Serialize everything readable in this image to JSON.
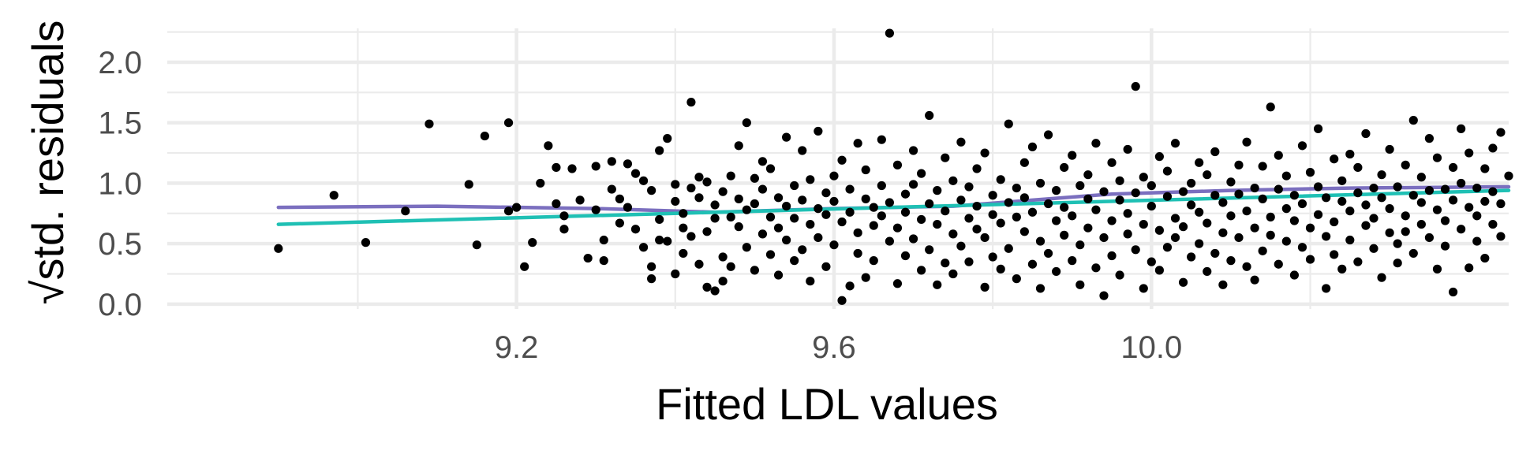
{
  "chart_data": {
    "type": "scatter",
    "title": "",
    "xlabel": "Fitted LDL values",
    "ylabel": "√std. residuals",
    "xlim": [
      8.76,
      10.45
    ],
    "ylim": [
      -0.04,
      2.28
    ],
    "x_ticks": [
      9.2,
      9.6,
      10.0
    ],
    "x_tick_labels": [
      "9.2",
      "9.6",
      "10.0"
    ],
    "y_ticks": [
      0.0,
      0.5,
      1.0,
      1.5,
      2.0
    ],
    "y_tick_labels": [
      "0.0",
      "0.5",
      "1.0",
      "1.5",
      "2.0"
    ],
    "grid": true,
    "legend": "none",
    "colors": {
      "background": "#ffffff",
      "grid": "#ebebeb",
      "points": "#000000",
      "smooth_line": "#7b6fbf",
      "linear_line": "#1fc0b4"
    },
    "points": [
      [
        8.9,
        0.46
      ],
      [
        8.97,
        0.9
      ],
      [
        9.01,
        0.51
      ],
      [
        9.06,
        0.77
      ],
      [
        9.09,
        1.49
      ],
      [
        9.14,
        0.99
      ],
      [
        9.15,
        0.49
      ],
      [
        9.16,
        1.39
      ],
      [
        9.19,
        1.5
      ],
      [
        9.19,
        0.77
      ],
      [
        9.2,
        0.8
      ],
      [
        9.21,
        0.31
      ],
      [
        9.22,
        0.51
      ],
      [
        9.23,
        1.0
      ],
      [
        9.24,
        1.31
      ],
      [
        9.25,
        1.13
      ],
      [
        9.25,
        0.83
      ],
      [
        9.26,
        0.62
      ],
      [
        9.26,
        0.73
      ],
      [
        9.27,
        1.12
      ],
      [
        9.28,
        0.86
      ],
      [
        9.29,
        0.38
      ],
      [
        9.3,
        1.14
      ],
      [
        9.3,
        0.78
      ],
      [
        9.31,
        0.36
      ],
      [
        9.31,
        0.53
      ],
      [
        9.32,
        1.18
      ],
      [
        9.32,
        0.95
      ],
      [
        9.33,
        0.67
      ],
      [
        9.33,
        0.87
      ],
      [
        9.34,
        1.16
      ],
      [
        9.34,
        0.8
      ],
      [
        9.35,
        1.08
      ],
      [
        9.35,
        0.62
      ],
      [
        9.36,
        1.02
      ],
      [
        9.36,
        0.47
      ],
      [
        9.37,
        0.94
      ],
      [
        9.37,
        0.21
      ],
      [
        9.37,
        0.31
      ],
      [
        9.38,
        0.53
      ],
      [
        9.38,
        1.27
      ],
      [
        9.38,
        0.7
      ],
      [
        9.39,
        1.37
      ],
      [
        9.39,
        0.52
      ],
      [
        9.4,
        0.85
      ],
      [
        9.4,
        0.25
      ],
      [
        9.4,
        0.99
      ],
      [
        9.41,
        0.63
      ],
      [
        9.41,
        0.42
      ],
      [
        9.41,
        0.75
      ],
      [
        9.42,
        1.67
      ],
      [
        9.42,
        0.96
      ],
      [
        9.42,
        0.56
      ],
      [
        9.43,
        1.05
      ],
      [
        9.43,
        0.33
      ],
      [
        9.43,
        0.88
      ],
      [
        9.44,
        0.6
      ],
      [
        9.44,
        0.14
      ],
      [
        9.44,
        1.01
      ],
      [
        9.45,
        0.71
      ],
      [
        9.45,
        0.11
      ],
      [
        9.45,
        0.82
      ],
      [
        9.46,
        0.19
      ],
      [
        9.46,
        0.93
      ],
      [
        9.46,
        0.39
      ],
      [
        9.47,
        0.72
      ],
      [
        9.47,
        1.06
      ],
      [
        9.47,
        0.31
      ],
      [
        9.48,
        0.64
      ],
      [
        9.48,
        1.31
      ],
      [
        9.48,
        0.87
      ],
      [
        9.49,
        1.5
      ],
      [
        9.49,
        0.47
      ],
      [
        9.49,
        0.78
      ],
      [
        9.5,
        1.04
      ],
      [
        9.5,
        0.28
      ],
      [
        9.5,
        0.83
      ],
      [
        9.51,
        0.58
      ],
      [
        9.51,
        1.18
      ],
      [
        9.51,
        0.95
      ],
      [
        9.52,
        0.41
      ],
      [
        9.52,
        0.72
      ],
      [
        9.52,
        1.12
      ],
      [
        9.53,
        0.24
      ],
      [
        9.53,
        0.88
      ],
      [
        9.53,
        0.63
      ],
      [
        9.54,
        1.38
      ],
      [
        9.54,
        0.53
      ],
      [
        9.54,
        0.81
      ],
      [
        9.55,
        0.98
      ],
      [
        9.55,
        0.36
      ],
      [
        9.55,
        0.71
      ],
      [
        9.56,
        1.27
      ],
      [
        9.56,
        0.45
      ],
      [
        9.56,
        0.86
      ],
      [
        9.57,
        0.19
      ],
      [
        9.57,
        1.03
      ],
      [
        9.57,
        0.66
      ],
      [
        9.58,
        0.79
      ],
      [
        9.58,
        1.43
      ],
      [
        9.58,
        0.55
      ],
      [
        9.59,
        0.92
      ],
      [
        9.59,
        0.31
      ],
      [
        9.59,
        0.74
      ],
      [
        9.6,
        1.06
      ],
      [
        9.6,
        0.49
      ],
      [
        9.6,
        0.85
      ],
      [
        9.61,
        0.03
      ],
      [
        9.61,
        0.68
      ],
      [
        9.61,
        1.19
      ],
      [
        9.62,
        0.15
      ],
      [
        9.62,
        0.76
      ],
      [
        9.62,
        0.95
      ],
      [
        9.63,
        0.42
      ],
      [
        9.63,
        1.33
      ],
      [
        9.63,
        0.59
      ],
      [
        9.64,
        0.87
      ],
      [
        9.64,
        0.22
      ],
      [
        9.64,
        1.11
      ],
      [
        9.65,
        0.65
      ],
      [
        9.65,
        0.8
      ],
      [
        9.65,
        0.36
      ],
      [
        9.66,
        1.36
      ],
      [
        9.66,
        0.73
      ],
      [
        9.66,
        0.98
      ],
      [
        9.67,
        2.24
      ],
      [
        9.67,
        0.52
      ],
      [
        9.67,
        0.84
      ],
      [
        9.68,
        0.17
      ],
      [
        9.68,
        1.15
      ],
      [
        9.68,
        0.63
      ],
      [
        9.69,
        0.91
      ],
      [
        9.69,
        0.4
      ],
      [
        9.69,
        0.76
      ],
      [
        9.7,
        1.27
      ],
      [
        9.7,
        0.54
      ],
      [
        9.7,
        0.99
      ],
      [
        9.71,
        0.28
      ],
      [
        9.71,
        0.7
      ],
      [
        9.71,
        1.08
      ],
      [
        9.72,
        0.45
      ],
      [
        9.72,
        0.83
      ],
      [
        9.72,
        1.56
      ],
      [
        9.73,
        0.16
      ],
      [
        9.73,
        0.66
      ],
      [
        9.73,
        0.94
      ],
      [
        9.74,
        0.34
      ],
      [
        9.74,
        1.21
      ],
      [
        9.74,
        0.77
      ],
      [
        9.75,
        0.58
      ],
      [
        9.75,
        1.02
      ],
      [
        9.75,
        0.25
      ],
      [
        9.76,
        0.86
      ],
      [
        9.76,
        1.34
      ],
      [
        9.76,
        0.48
      ],
      [
        9.77,
        0.71
      ],
      [
        9.77,
        0.97
      ],
      [
        9.77,
        0.35
      ],
      [
        9.78,
        1.12
      ],
      [
        9.78,
        0.62
      ],
      [
        9.78,
        0.81
      ],
      [
        9.79,
        0.14
      ],
      [
        9.79,
        1.25
      ],
      [
        9.79,
        0.55
      ],
      [
        9.8,
        0.9
      ],
      [
        9.8,
        0.39
      ],
      [
        9.8,
        0.74
      ],
      [
        9.81,
        1.03
      ],
      [
        9.81,
        0.29
      ],
      [
        9.81,
        0.67
      ],
      [
        9.82,
        1.49
      ],
      [
        9.82,
        0.84
      ],
      [
        9.82,
        0.46
      ],
      [
        9.83,
        0.96
      ],
      [
        9.83,
        0.21
      ],
      [
        9.83,
        0.72
      ],
      [
        9.84,
        1.17
      ],
      [
        9.84,
        0.6
      ],
      [
        9.84,
        0.88
      ],
      [
        9.85,
        0.33
      ],
      [
        9.85,
        1.3
      ],
      [
        9.85,
        0.76
      ],
      [
        9.86,
        0.52
      ],
      [
        9.86,
        1.0
      ],
      [
        9.86,
        0.13
      ],
      [
        9.87,
        0.83
      ],
      [
        9.87,
        1.4
      ],
      [
        9.87,
        0.42
      ],
      [
        9.88,
        0.69
      ],
      [
        9.88,
        0.94
      ],
      [
        9.88,
        0.27
      ],
      [
        9.89,
        1.13
      ],
      [
        9.89,
        0.57
      ],
      [
        9.89,
        0.8
      ],
      [
        9.9,
        0.36
      ],
      [
        9.9,
        1.23
      ],
      [
        9.9,
        0.73
      ],
      [
        9.91,
        0.98
      ],
      [
        9.91,
        0.49
      ],
      [
        9.91,
        0.16
      ],
      [
        9.92,
        0.87
      ],
      [
        9.92,
        1.07
      ],
      [
        9.92,
        0.63
      ],
      [
        9.93,
        0.3
      ],
      [
        9.93,
        1.33
      ],
      [
        9.93,
        0.78
      ],
      [
        9.94,
        0.55
      ],
      [
        9.94,
        0.93
      ],
      [
        9.94,
        0.07
      ],
      [
        9.95,
        1.17
      ],
      [
        9.95,
        0.69
      ],
      [
        9.95,
        0.4
      ],
      [
        9.96,
        0.86
      ],
      [
        9.96,
        1.02
      ],
      [
        9.96,
        0.24
      ],
      [
        9.97,
        0.75
      ],
      [
        9.97,
        1.28
      ],
      [
        9.97,
        0.58
      ],
      [
        9.98,
        0.92
      ],
      [
        9.98,
        0.45
      ],
      [
        9.98,
        1.8
      ],
      [
        9.99,
        0.66
      ],
      [
        9.99,
        0.13
      ],
      [
        9.99,
        1.05
      ],
      [
        10.0,
        0.81
      ],
      [
        10.0,
        0.35
      ],
      [
        10.0,
        0.98
      ],
      [
        10.01,
        1.22
      ],
      [
        10.01,
        0.61
      ],
      [
        10.01,
        0.28
      ],
      [
        10.02,
        0.89
      ],
      [
        10.02,
        0.47
      ],
      [
        10.02,
        1.1
      ],
      [
        10.03,
        0.71
      ],
      [
        10.03,
        0.55
      ],
      [
        10.03,
        1.33
      ],
      [
        10.04,
        0.18
      ],
      [
        10.04,
        0.93
      ],
      [
        10.04,
        0.64
      ],
      [
        10.05,
        1.0
      ],
      [
        10.05,
        0.39
      ],
      [
        10.05,
        0.82
      ],
      [
        10.06,
        1.17
      ],
      [
        10.06,
        0.5
      ],
      [
        10.06,
        0.76
      ],
      [
        10.07,
        0.27
      ],
      [
        10.07,
        1.07
      ],
      [
        10.07,
        0.67
      ],
      [
        10.08,
        0.9
      ],
      [
        10.08,
        0.42
      ],
      [
        10.08,
        1.26
      ],
      [
        10.09,
        0.59
      ],
      [
        10.09,
        0.84
      ],
      [
        10.09,
        0.16
      ],
      [
        10.1,
        1.01
      ],
      [
        10.1,
        0.73
      ],
      [
        10.1,
        0.36
      ],
      [
        10.11,
        1.15
      ],
      [
        10.11,
        0.55
      ],
      [
        10.11,
        0.91
      ],
      [
        10.12,
        0.31
      ],
      [
        10.12,
        0.77
      ],
      [
        10.12,
        1.34
      ],
      [
        10.13,
        0.63
      ],
      [
        10.13,
        0.96
      ],
      [
        10.13,
        0.2
      ],
      [
        10.14,
        0.87
      ],
      [
        10.14,
        1.14
      ],
      [
        10.14,
        0.44
      ],
      [
        10.15,
        0.72
      ],
      [
        10.15,
        1.63
      ],
      [
        10.15,
        0.57
      ],
      [
        10.16,
        0.95
      ],
      [
        10.16,
        0.33
      ],
      [
        10.16,
        1.23
      ],
      [
        10.17,
        0.79
      ],
      [
        10.17,
        0.52
      ],
      [
        10.17,
        1.06
      ],
      [
        10.18,
        0.69
      ],
      [
        10.18,
        0.24
      ],
      [
        10.18,
        0.9
      ],
      [
        10.19,
        1.31
      ],
      [
        10.19,
        0.47
      ],
      [
        10.19,
        0.83
      ],
      [
        10.2,
        0.63
      ],
      [
        10.2,
        1.09
      ],
      [
        10.2,
        0.37
      ],
      [
        10.21,
        0.97
      ],
      [
        10.21,
        0.74
      ],
      [
        10.21,
        1.45
      ],
      [
        10.22,
        0.56
      ],
      [
        10.22,
        0.88
      ],
      [
        10.22,
        0.13
      ],
      [
        10.23,
        1.2
      ],
      [
        10.23,
        0.68
      ],
      [
        10.23,
        0.41
      ],
      [
        10.24,
        0.85
      ],
      [
        10.24,
        1.02
      ],
      [
        10.24,
        0.29
      ],
      [
        10.25,
        0.77
      ],
      [
        10.25,
        1.24
      ],
      [
        10.25,
        0.53
      ],
      [
        10.26,
        0.92
      ],
      [
        10.26,
        0.35
      ],
      [
        10.26,
        1.13
      ],
      [
        10.27,
        0.65
      ],
      [
        10.27,
        0.82
      ],
      [
        10.27,
        1.41
      ],
      [
        10.28,
        0.46
      ],
      [
        10.28,
        0.96
      ],
      [
        10.28,
        0.71
      ],
      [
        10.29,
        1.07
      ],
      [
        10.29,
        0.22
      ],
      [
        10.29,
        0.88
      ],
      [
        10.3,
        0.59
      ],
      [
        10.3,
        1.28
      ],
      [
        10.3,
        0.79
      ],
      [
        10.31,
        0.5
      ],
      [
        10.31,
        0.97
      ],
      [
        10.31,
        0.34
      ],
      [
        10.32,
        1.15
      ],
      [
        10.32,
        0.73
      ],
      [
        10.32,
        0.6
      ],
      [
        10.33,
        0.9
      ],
      [
        10.33,
        1.52
      ],
      [
        10.33,
        0.42
      ],
      [
        10.34,
        0.84
      ],
      [
        10.34,
        1.05
      ],
      [
        10.34,
        0.66
      ],
      [
        10.35,
        1.37
      ],
      [
        10.35,
        0.55
      ],
      [
        10.35,
        0.94
      ],
      [
        10.36,
        0.29
      ],
      [
        10.36,
        0.78
      ],
      [
        10.36,
        1.21
      ],
      [
        10.37,
        0.69
      ],
      [
        10.37,
        0.95
      ],
      [
        10.37,
        0.48
      ],
      [
        10.38,
        1.13
      ],
      [
        10.38,
        0.86
      ],
      [
        10.38,
        0.1
      ],
      [
        10.39,
        1.0
      ],
      [
        10.39,
        0.62
      ],
      [
        10.39,
        1.45
      ],
      [
        10.4,
        0.8
      ],
      [
        10.4,
        0.3
      ],
      [
        10.4,
        1.25
      ],
      [
        10.41,
        0.73
      ],
      [
        10.41,
        0.96
      ],
      [
        10.41,
        0.52
      ],
      [
        10.42,
        1.12
      ],
      [
        10.42,
        0.85
      ],
      [
        10.42,
        0.38
      ],
      [
        10.43,
        1.29
      ],
      [
        10.43,
        0.66
      ],
      [
        10.43,
        0.93
      ],
      [
        10.44,
        1.42
      ],
      [
        10.44,
        0.56
      ],
      [
        10.44,
        0.83
      ],
      [
        10.45,
        1.06
      ]
    ],
    "series": [
      {
        "values": [
          [
            8.9,
            0.8
          ],
          [
            9.1,
            0.81
          ],
          [
            9.3,
            0.79
          ],
          [
            9.45,
            0.76
          ],
          [
            9.6,
            0.79
          ],
          [
            9.75,
            0.81
          ],
          [
            9.85,
            0.86
          ],
          [
            9.95,
            0.91
          ],
          [
            10.1,
            0.94
          ],
          [
            10.25,
            0.96
          ],
          [
            10.45,
            0.97
          ]
        ]
      },
      {
        "values": [
          [
            8.9,
            0.66
          ],
          [
            10.45,
            0.94
          ]
        ]
      }
    ]
  }
}
